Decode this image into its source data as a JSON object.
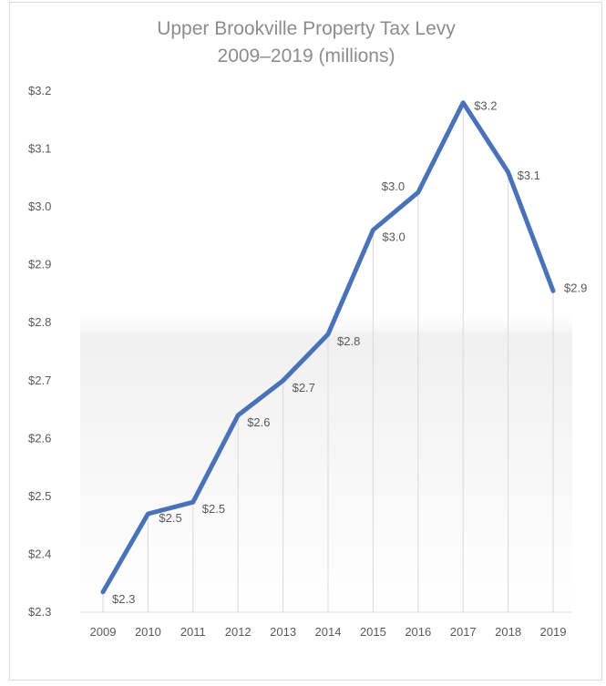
{
  "chart_data": {
    "type": "line",
    "title_lines": [
      "Upper Brookville Property Tax Levy",
      "2009–2019 (millions)"
    ],
    "xlabel": "",
    "ylabel": "",
    "x": [
      "2009",
      "2010",
      "2011",
      "2012",
      "2013",
      "2014",
      "2015",
      "2016",
      "2017",
      "2018",
      "2019"
    ],
    "series": [
      {
        "values": [
          2.335,
          2.47,
          2.49,
          2.64,
          2.7,
          2.78,
          2.96,
          3.025,
          3.18,
          3.06,
          2.855
        ],
        "data_labels": [
          "$2.3",
          "$2.5",
          "$2.5",
          "$2.6",
          "$2.7",
          "$2.8",
          "$3.0",
          "$3.0",
          "$3.2",
          "$3.1",
          "$2.9"
        ],
        "color": "#4a72b8"
      }
    ],
    "ylim": [
      2.3,
      3.2
    ],
    "yticks": [
      2.3,
      2.4,
      2.5,
      2.6,
      2.7,
      2.8,
      2.9,
      3.0,
      3.1,
      3.2
    ],
    "ytick_labels": [
      "$2.3",
      "$2.4",
      "$2.5",
      "$2.6",
      "$2.7",
      "$2.8",
      "$2.9",
      "$3.0",
      "$3.1",
      "$3.2"
    ],
    "grid": "vertical drop lines at each point",
    "legend": "none"
  }
}
